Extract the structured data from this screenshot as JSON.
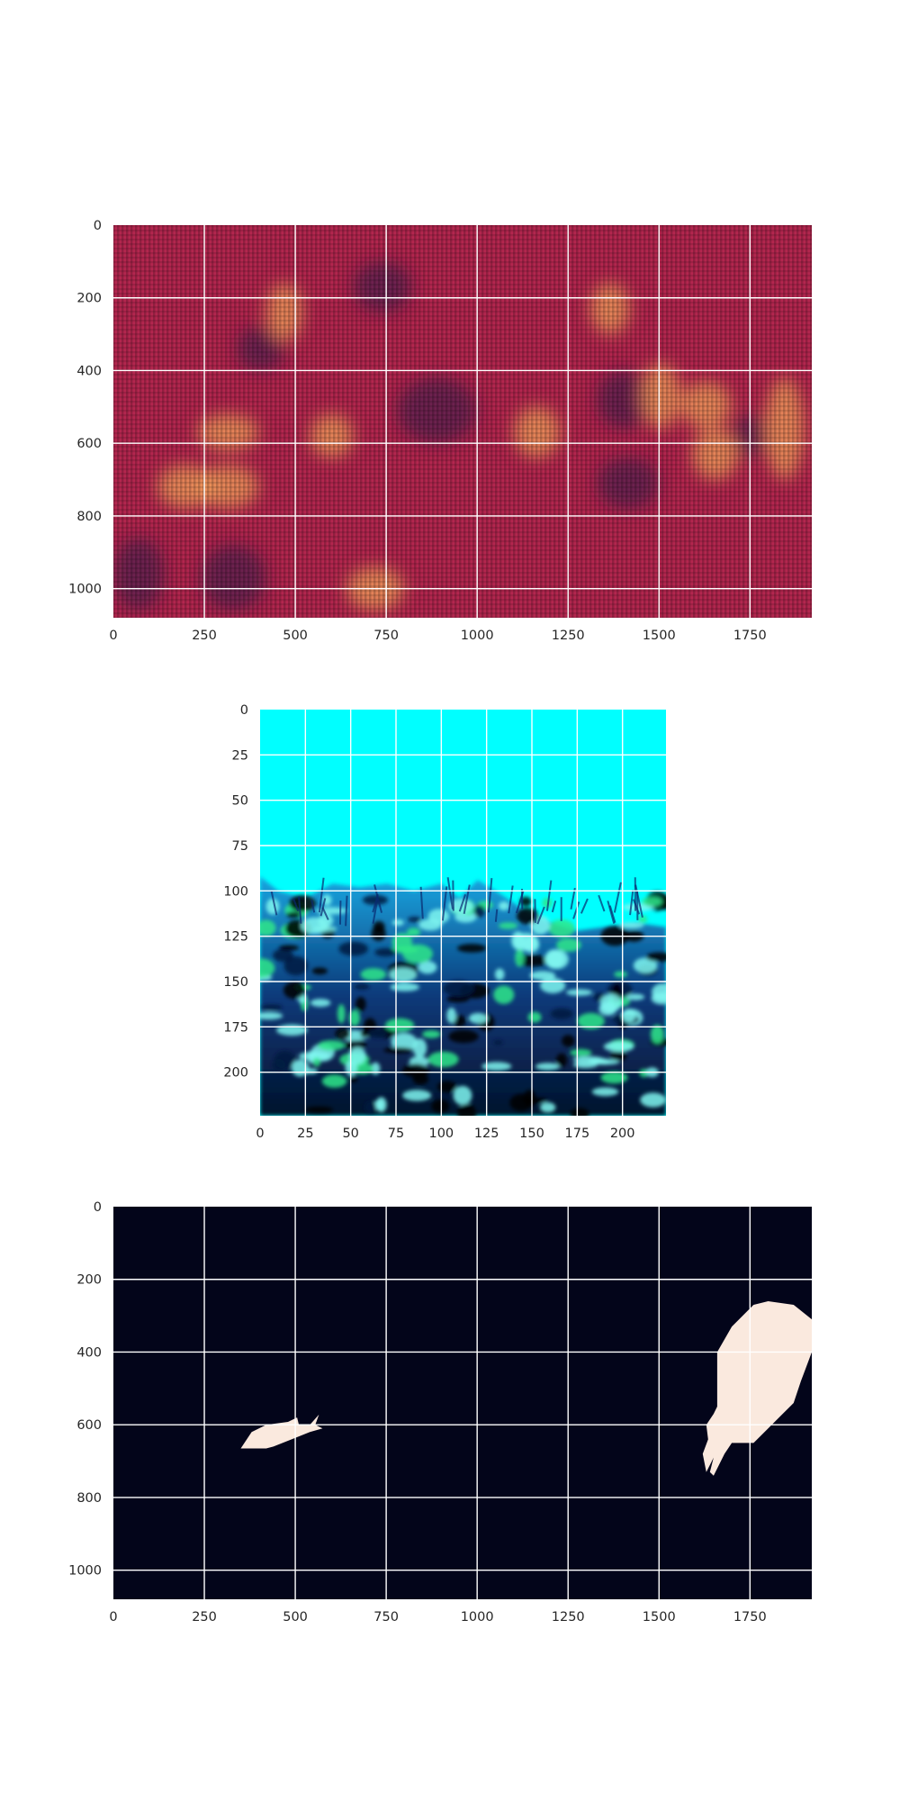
{
  "chart_data": [
    {
      "type": "heatmap",
      "title": "",
      "xlabel": "",
      "ylabel": "",
      "xlim": [
        0,
        1920
      ],
      "ylim": [
        1080,
        0
      ],
      "xticks": [
        0,
        250,
        500,
        750,
        1000,
        1250,
        1500,
        1750
      ],
      "yticks": [
        0,
        200,
        400,
        600,
        800,
        1000
      ],
      "grid": true,
      "colormap": "rocket",
      "colors": {
        "base": "#b3264f",
        "dark": "#3d1a4e",
        "bright": "#f6a35c"
      },
      "bright_regions": [
        {
          "x": [
            120,
            280
          ],
          "y": [
            660,
            780
          ]
        },
        {
          "x": [
            230,
            400
          ],
          "y": [
            520,
            620
          ]
        },
        {
          "x": [
            230,
            400
          ],
          "y": [
            660,
            780
          ]
        },
        {
          "x": [
            540,
            660
          ],
          "y": [
            520,
            640
          ]
        },
        {
          "x": [
            640,
            800
          ],
          "y": [
            940,
            1060
          ]
        },
        {
          "x": [
            1100,
            1230
          ],
          "y": [
            500,
            640
          ]
        },
        {
          "x": [
            1450,
            1560
          ],
          "y": [
            380,
            560
          ]
        },
        {
          "x": [
            1560,
            1700
          ],
          "y": [
            430,
            560
          ]
        },
        {
          "x": [
            1590,
            1720
          ],
          "y": [
            560,
            700
          ]
        },
        {
          "x": [
            1790,
            1900
          ],
          "y": [
            420,
            700
          ]
        },
        {
          "x": [
            420,
            520
          ],
          "y": [
            160,
            320
          ]
        },
        {
          "x": [
            1310,
            1420
          ],
          "y": [
            160,
            300
          ]
        }
      ],
      "dark_regions": [
        {
          "x": [
            0,
            140
          ],
          "y": [
            860,
            1060
          ]
        },
        {
          "x": [
            240,
            420
          ],
          "y": [
            880,
            1060
          ]
        },
        {
          "x": [
            340,
            470
          ],
          "y": [
            280,
            400
          ]
        },
        {
          "x": [
            660,
            820
          ],
          "y": [
            100,
            240
          ]
        },
        {
          "x": [
            1330,
            1500
          ],
          "y": [
            640,
            780
          ]
        },
        {
          "x": [
            1330,
            1480
          ],
          "y": [
            400,
            560
          ]
        },
        {
          "x": [
            1700,
            1800
          ],
          "y": [
            520,
            640
          ]
        },
        {
          "x": [
            780,
            1000
          ],
          "y": [
            420,
            600
          ]
        }
      ]
    },
    {
      "type": "image",
      "title": "",
      "xlabel": "",
      "ylabel": "",
      "xlim": [
        0,
        224
      ],
      "ylim": [
        224,
        0
      ],
      "xticks": [
        0,
        25,
        50,
        75,
        100,
        125,
        150,
        175,
        200
      ],
      "yticks": [
        0,
        25,
        50,
        75,
        100,
        125,
        150,
        175,
        200
      ],
      "grid": true,
      "colors": {
        "water": "#00ffff",
        "reef_dark": "#001a40",
        "reef_light": "#7ff7f0",
        "reef_green": "#2ee88a",
        "shadow": "#000000"
      }
    },
    {
      "type": "image",
      "title": "",
      "xlabel": "",
      "ylabel": "",
      "xlim": [
        0,
        1920
      ],
      "ylim": [
        1080,
        0
      ],
      "xticks": [
        0,
        250,
        500,
        750,
        1000,
        1250,
        1500,
        1750
      ],
      "yticks": [
        0,
        200,
        400,
        600,
        800,
        1000
      ],
      "grid": true,
      "colors": {
        "background": "#03051a",
        "mask": "#fae9de"
      },
      "masks": [
        {
          "label": "",
          "points": [
            [
              350,
              665
            ],
            [
              380,
              620
            ],
            [
              420,
              600
            ],
            [
              480,
              592
            ],
            [
              505,
              580
            ],
            [
              510,
              600
            ],
            [
              540,
              600
            ],
            [
              565,
              572
            ],
            [
              555,
              600
            ],
            [
              575,
              610
            ],
            [
              540,
              620
            ],
            [
              490,
              640
            ],
            [
              440,
              660
            ],
            [
              420,
              665
            ]
          ]
        },
        {
          "label": "",
          "points": [
            [
              1660,
              550
            ],
            [
              1660,
              400
            ],
            [
              1700,
              330
            ],
            [
              1760,
              270
            ],
            [
              1800,
              260
            ],
            [
              1870,
              270
            ],
            [
              1920,
              310
            ],
            [
              1920,
              400
            ],
            [
              1890,
              480
            ],
            [
              1870,
              540
            ],
            [
              1830,
              580
            ],
            [
              1800,
              610
            ],
            [
              1760,
              650
            ],
            [
              1700,
              650
            ],
            [
              1680,
              680
            ],
            [
              1660,
              720
            ],
            [
              1650,
              740
            ],
            [
              1640,
              730
            ],
            [
              1650,
              690
            ],
            [
              1630,
              730
            ],
            [
              1620,
              680
            ],
            [
              1635,
              640
            ],
            [
              1630,
              600
            ],
            [
              1650,
              570
            ]
          ]
        }
      ]
    }
  ]
}
